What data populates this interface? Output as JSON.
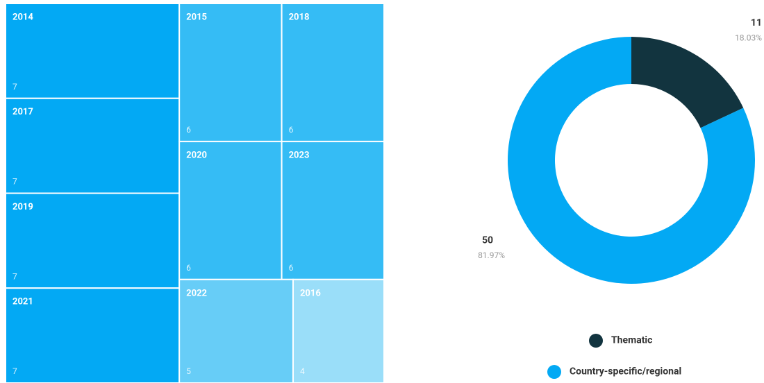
{
  "chart_data": [
    {
      "type": "treemap",
      "categories": [
        "2014",
        "2017",
        "2019",
        "2021",
        "2015",
        "2018",
        "2020",
        "2023",
        "2022",
        "2016"
      ],
      "values": [
        7,
        7,
        7,
        7,
        6,
        6,
        6,
        6,
        5,
        4
      ],
      "colors": [
        "#03a9f4",
        "#03a9f4",
        "#03a9f4",
        "#03a9f4",
        "#35bcf5",
        "#35bcf5",
        "#35bcf5",
        "#35bcf5",
        "#67cdf7",
        "#9adef9"
      ]
    },
    {
      "type": "donut",
      "categories": [
        "Thematic",
        "Country-specific/regional"
      ],
      "values": [
        11,
        50
      ],
      "percent_labels": [
        "18.03%",
        "81.97%"
      ],
      "colors": [
        "#12343f",
        "#03a9f4"
      ]
    }
  ]
}
